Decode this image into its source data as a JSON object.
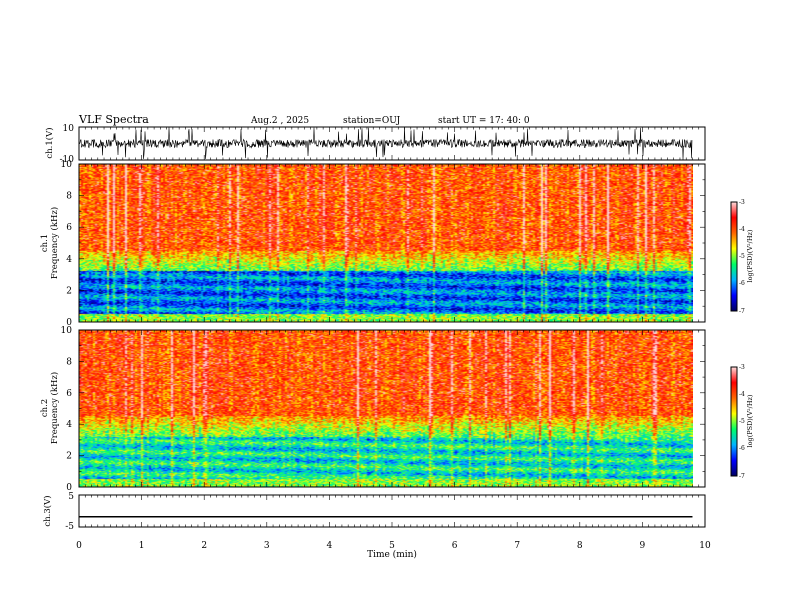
{
  "header": {
    "title": "VLF Spectra",
    "date": "Aug.2 , 2025",
    "station": "station=OUJ",
    "start": "start UT =  17: 40: 0"
  },
  "chart_data": [
    {
      "type": "line",
      "name": "ch.1 waveform",
      "ylabel": "ch.1(V)",
      "ylim": [
        -10,
        10
      ],
      "y_ticklabels": [
        "10",
        "-10"
      ],
      "x_range_min": [
        0,
        9.8
      ],
      "trace": "noisy broadband signal around 0 V"
    },
    {
      "type": "heatmap",
      "name": "ch.1 spectrogram",
      "ylabel": [
        "ch.1",
        "Frequency (kHz)"
      ],
      "ylim": [
        0,
        10
      ],
      "y_ticks": [
        0,
        2,
        4,
        6,
        8,
        10
      ],
      "x_range_min": [
        0,
        9.8
      ],
      "colorbar": {
        "label": "log(PSD)(V²/Hz)",
        "min": -7,
        "max": -3,
        "ticks": [
          "-3",
          "-4",
          "-5",
          "-6",
          "-7"
        ]
      }
    },
    {
      "type": "heatmap",
      "name": "ch.2 spectrogram",
      "ylabel": [
        "ch.2",
        "Frequency (kHz)"
      ],
      "ylim": [
        0,
        10
      ],
      "y_ticks": [
        0,
        2,
        4,
        6,
        8,
        10
      ],
      "x_range_min": [
        0,
        9.8
      ],
      "colorbar": {
        "label": "log(PSD)(V²/Hz)",
        "min": -7,
        "max": -3,
        "ticks": [
          "-3",
          "-4",
          "-5",
          "-6",
          "-7"
        ]
      }
    },
    {
      "type": "line",
      "name": "ch.3 waveform",
      "ylabel": "ch.3(V)",
      "ylim": [
        -5,
        5
      ],
      "y_ticklabels": [
        "5",
        "-5"
      ],
      "x": [
        0,
        9.8
      ],
      "y": [
        -1.8,
        -1.8
      ]
    }
  ],
  "xaxis": {
    "label": "Time (min)",
    "min": 0,
    "max": 10,
    "ticks": [
      "0",
      "1",
      "2",
      "3",
      "4",
      "5",
      "6",
      "7",
      "8",
      "9",
      "10"
    ]
  },
  "colors": {
    "scale": [
      "#000060",
      "#0000ff",
      "#00b4ff",
      "#00ff66",
      "#ffff00",
      "#ff6600",
      "#ff0000",
      "#ffdddd"
    ]
  }
}
